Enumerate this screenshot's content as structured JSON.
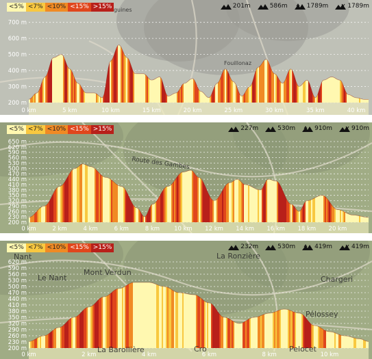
{
  "legend": {
    "items": [
      {
        "label": "<5%",
        "color": "#fff8b0"
      },
      {
        "label": "<7%",
        "color": "#f8c840"
      },
      {
        "label": "<10%",
        "color": "#f08a24"
      },
      {
        "label": "<15%",
        "color": "#e0461c"
      },
      {
        "label": ">15%",
        "color": "#b8201a"
      }
    ]
  },
  "panels": [
    {
      "stats": {
        "ascent_min": "201m",
        "ascent_max": "586m",
        "climb": "1789m",
        "descent": "1789m"
      },
      "map_labels": [
        "Les Séguines",
        "Fouillonaz"
      ],
      "map_style": "light"
    },
    {
      "stats": {
        "ascent_min": "227m",
        "ascent_max": "530m",
        "climb": "910m",
        "descent": "910m"
      },
      "map_labels": [
        "Route des Gambes"
      ],
      "map_style": "green"
    },
    {
      "stats": {
        "ascent_min": "232m",
        "ascent_max": "530m",
        "climb": "419m",
        "descent": "419m"
      },
      "map_labels": [
        "Nant",
        "Le Nant",
        "Mont Verdun",
        "La Ronzière",
        "Chargeri",
        "Pélossey",
        "La Barollière",
        "Pelocet",
        "Cro"
      ],
      "map_style": "green"
    }
  ],
  "chart_data": [
    {
      "type": "area",
      "title": "",
      "xlabel": "",
      "ylabel": "",
      "xlim": [
        0,
        41.5
      ],
      "ylim": [
        200,
        720
      ],
      "x_unit": "km",
      "y_unit": "m",
      "x_ticks": [
        0,
        5,
        10,
        15,
        20,
        25,
        30,
        35,
        40
      ],
      "x_tick_labels": [
        "0 km",
        "5 km",
        "10 km",
        "15 km",
        "20 km",
        "25 km",
        "30 km",
        "35 km",
        "40 km"
      ],
      "y_ticks": [
        200,
        300,
        400,
        500,
        600,
        700
      ],
      "y_tick_labels": [
        "200 m",
        "300 m",
        "400 m",
        "500 m",
        "600 m",
        "700 m"
      ],
      "grid": true,
      "legend_position": "top-left",
      "x": [
        0,
        1,
        2,
        3,
        4,
        5,
        6,
        7,
        8,
        9,
        10,
        11,
        12,
        13,
        14,
        15,
        16,
        17,
        18,
        19,
        20,
        21,
        22,
        23,
        24,
        25,
        26,
        27,
        28,
        29,
        30,
        31,
        32,
        33,
        34,
        35,
        36,
        37,
        38,
        39,
        40,
        41
      ],
      "y": [
        220,
        260,
        360,
        480,
        500,
        410,
        320,
        260,
        260,
        230,
        460,
        560,
        480,
        380,
        380,
        340,
        360,
        240,
        260,
        320,
        350,
        270,
        230,
        320,
        410,
        330,
        240,
        300,
        420,
        470,
        380,
        320,
        410,
        300,
        340,
        230,
        340,
        360,
        340,
        250,
        230,
        220
      ]
    },
    {
      "type": "area",
      "title": "",
      "xlabel": "",
      "ylabel": "",
      "xlim": [
        0,
        22
      ],
      "ylim": [
        200,
        650
      ],
      "x_unit": "km",
      "y_unit": "m",
      "x_ticks": [
        0,
        2,
        4,
        6,
        8,
        10,
        12,
        14,
        16,
        18,
        20
      ],
      "x_tick_labels": [
        "0 km",
        "2 km",
        "4 km",
        "6 km",
        "8 km",
        "10 km",
        "12 km",
        "14 km",
        "16 km",
        "18 km",
        "20 km"
      ],
      "y_ticks": [
        200,
        230,
        260,
        290,
        320,
        350,
        380,
        410,
        440,
        470,
        500,
        530,
        560,
        590,
        620,
        650
      ],
      "y_tick_labels": [
        "200 m",
        "230 m",
        "260 m",
        "290 m",
        "320 m",
        "350 m",
        "380 m",
        "410 m",
        "440 m",
        "470 m",
        "500 m",
        "530 m",
        "560 m",
        "590 m",
        "620 m",
        "650 m"
      ],
      "grid": true,
      "legend_position": "top-left",
      "x": [
        0,
        1,
        2,
        3,
        3.5,
        4,
        5,
        6,
        7,
        7.5,
        8,
        9,
        10,
        10.5,
        11,
        12,
        13,
        13.5,
        14,
        15,
        15.5,
        16,
        17,
        17.5,
        18,
        19,
        20,
        21,
        22
      ],
      "y": [
        227,
        290,
        400,
        500,
        525,
        510,
        450,
        400,
        280,
        230,
        300,
        400,
        480,
        490,
        450,
        320,
        420,
        440,
        410,
        380,
        440,
        430,
        300,
        260,
        320,
        350,
        270,
        240,
        227
      ]
    },
    {
      "type": "area",
      "title": "",
      "xlabel": "",
      "ylabel": "",
      "xlim": [
        0,
        11.3
      ],
      "ylim": [
        200,
        650
      ],
      "x_unit": "km",
      "y_unit": "m",
      "x_ticks": [
        0,
        2,
        4,
        6,
        8,
        10
      ],
      "x_tick_labels": [
        "0 km",
        "2 km",
        "4 km",
        "6 km",
        "8 km",
        "10 km"
      ],
      "y_ticks": [
        200,
        230,
        260,
        290,
        320,
        350,
        380,
        410,
        440,
        470,
        500,
        530,
        560,
        590,
        620
      ],
      "y_tick_labels": [
        "200 m",
        "230 m",
        "260 m",
        "290 m",
        "320 m",
        "350 m",
        "380 m",
        "410 m",
        "440 m",
        "470 m",
        "500 m",
        "530 m",
        "560 m",
        "590 m",
        "620 m"
      ],
      "grid": true,
      "legend_position": "top-left",
      "x": [
        0,
        0.5,
        1,
        1.5,
        2,
        2.5,
        3,
        3.5,
        4,
        4.5,
        5,
        5.5,
        6,
        6.5,
        7,
        7.5,
        8,
        8.5,
        9,
        9.5,
        10,
        10.5,
        11,
        11.3
      ],
      "y": [
        232,
        260,
        300,
        350,
        400,
        450,
        490,
        520,
        520,
        500,
        470,
        460,
        420,
        350,
        320,
        350,
        370,
        390,
        370,
        310,
        280,
        260,
        245,
        232
      ]
    }
  ]
}
